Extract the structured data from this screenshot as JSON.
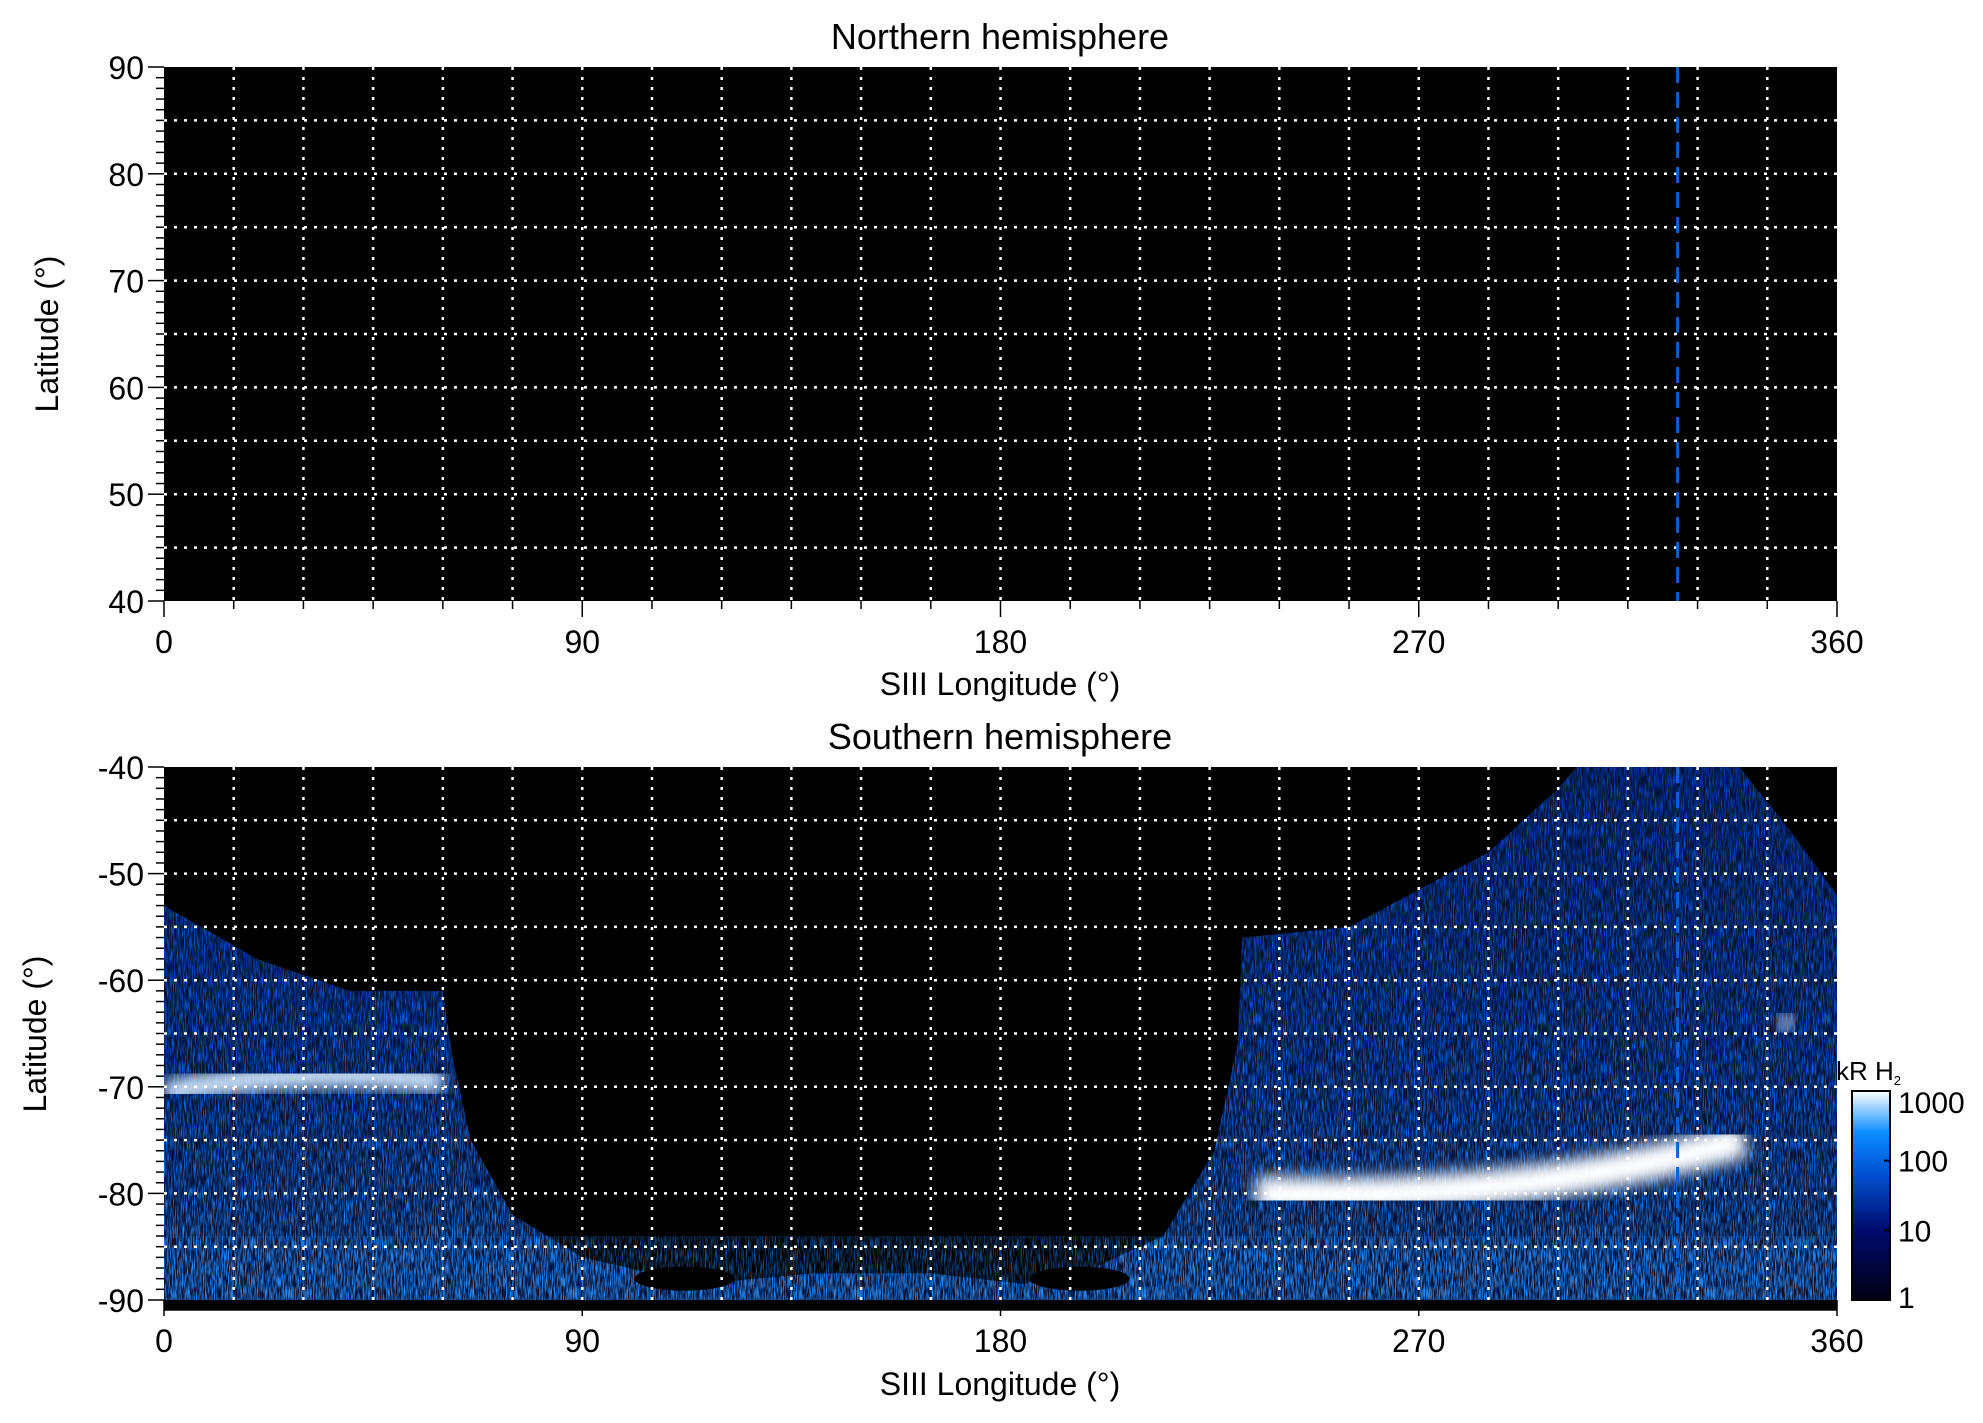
{
  "chart_data": [
    {
      "type": "heatmap",
      "title": "Northern hemisphere",
      "xlabel": "SIII Longitude (°)",
      "ylabel": "Latitude (°)",
      "xlim": [
        0,
        360
      ],
      "ylim": [
        40,
        90
      ],
      "xticks": [
        "0",
        "90",
        "180",
        "270",
        "360"
      ],
      "yticks": [
        "40",
        "50",
        "60",
        "70",
        "80",
        "90"
      ],
      "grid": "dotted white, every 15° longitude and 5° latitude",
      "marker_longitude": 325.7,
      "emission": "none (all black)"
    },
    {
      "type": "heatmap",
      "title": "Southern hemisphere",
      "xlabel": "SIII Longitude (°)",
      "ylabel": "Latitude (°)",
      "xlim": [
        0,
        360
      ],
      "ylim": [
        -90,
        -40
      ],
      "xticks": [
        "0",
        "90",
        "180",
        "270",
        "360"
      ],
      "yticks": [
        "-90",
        "-80",
        "-70",
        "-60",
        "-50",
        "-40"
      ],
      "grid": "dotted white, every 15° longitude and 5° latitude",
      "marker_longitude": 325.7,
      "colorbar": {
        "label": "kR H",
        "label_sub": "2",
        "scale": "log",
        "range": [
          1,
          1000
        ],
        "ticks": [
          "1",
          "10",
          "100",
          "1000"
        ],
        "colors": [
          "#000010",
          "#000a6e",
          "#0050d0",
          "#0a8cff",
          "#ffffff"
        ]
      }
    }
  ]
}
